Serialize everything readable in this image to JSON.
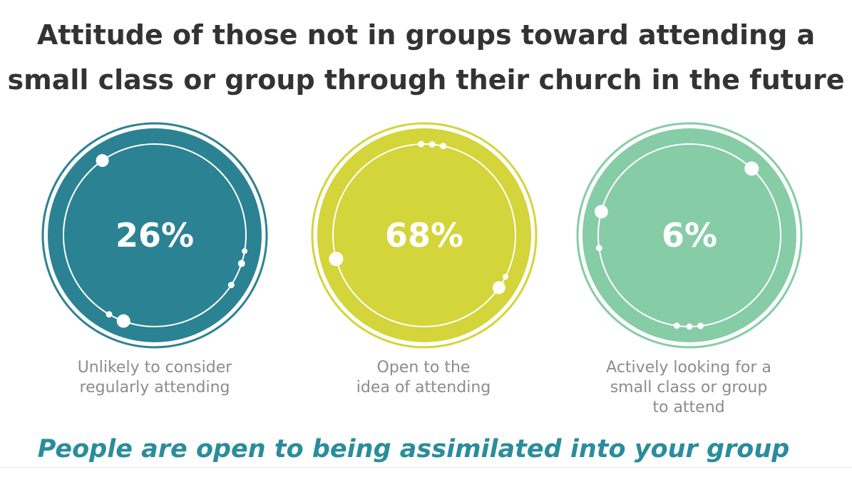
{
  "chart_data": {
    "type": "pie",
    "title_lines": [
      "Attitude of those not in groups toward attending a",
      "small class or group through their church in the future"
    ],
    "categories": [
      "Unlikely to consider regularly attending",
      "Open to the idea of attending",
      "Actively looking for a small class or group to attend"
    ],
    "values": [
      26,
      68,
      6
    ],
    "value_labels": [
      "26%",
      "68%",
      "6%"
    ],
    "caption_lines": [
      [
        "Unlikely to consider",
        "regularly attending"
      ],
      [
        "Open to the",
        "idea of attending"
      ],
      [
        "Actively looking for a",
        "small class or group",
        "to attend"
      ]
    ],
    "colors": [
      "#2b8292",
      "#d4d43b",
      "#86cca6"
    ]
  },
  "tagline": "People are open to being assimilated into your group",
  "colors": {
    "title": "#333333",
    "caption": "#8c8c8c",
    "tagline": "#2a8c9c"
  }
}
